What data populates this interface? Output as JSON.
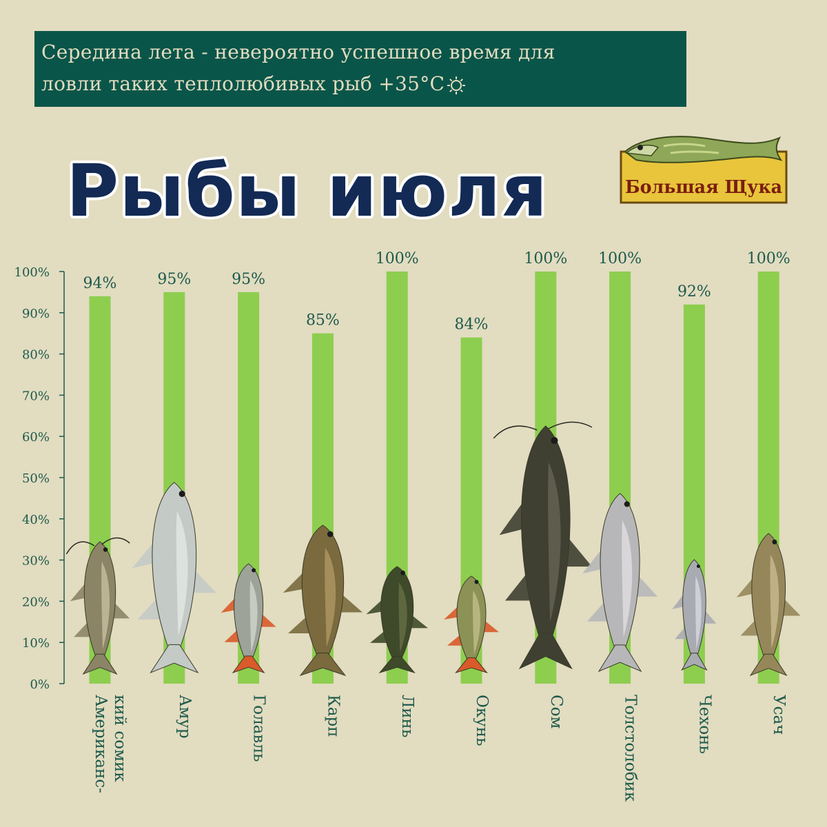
{
  "banner": {
    "line1": "Середина лета - невероятно успешное время для",
    "line2": "ловли таких теплолюбивых рыб +35°C"
  },
  "title": "Рыбы июля",
  "logo": {
    "text": "Большая Щука",
    "icon": "pike-logo-icon"
  },
  "colors": {
    "background": "#e2dcc0",
    "banner": "#0a5549",
    "bar": "#8dce4f",
    "axis_text": "#1d5a4c",
    "title": "#132a55"
  },
  "chart_data": {
    "type": "bar",
    "categories": [
      "Американс-кий сомик",
      "Амур",
      "Голавль",
      "Карп",
      "Линь",
      "Окунь",
      "Сом",
      "Толстолобик",
      "Чехонь",
      "Усач"
    ],
    "category_lines": [
      [
        "Американс-",
        "кий сомик"
      ],
      [
        "Амур"
      ],
      [
        "Голавль"
      ],
      [
        "Карп"
      ],
      [
        "Линь"
      ],
      [
        "Окунь"
      ],
      [
        "Сом"
      ],
      [
        "Толстолобик"
      ],
      [
        "Чехонь"
      ],
      [
        "Усач"
      ]
    ],
    "values": [
      94,
      95,
      95,
      85,
      100,
      84,
      100,
      100,
      92,
      100
    ],
    "value_labels": [
      "94%",
      "95%",
      "95%",
      "85%",
      "100%",
      "84%",
      "100%",
      "100%",
      "92%",
      "100%"
    ],
    "ylim": [
      0,
      100
    ],
    "yticks": [
      "0%",
      "10%",
      "20%",
      "30%",
      "40%",
      "50%",
      "60%",
      "70%",
      "80%",
      "90%",
      "100%"
    ],
    "ytick_values": [
      0,
      10,
      20,
      30,
      40,
      50,
      60,
      70,
      80,
      90,
      100
    ],
    "xlabel": "",
    "ylabel": "",
    "title": "",
    "grid": false,
    "legend": "none",
    "fish_icons": [
      "catfish-icon",
      "grass-carp-icon",
      "chub-icon",
      "carp-icon",
      "tench-icon",
      "perch-icon",
      "wels-catfish-icon",
      "silver-carp-icon",
      "sabrefish-icon",
      "barbel-icon"
    ]
  }
}
